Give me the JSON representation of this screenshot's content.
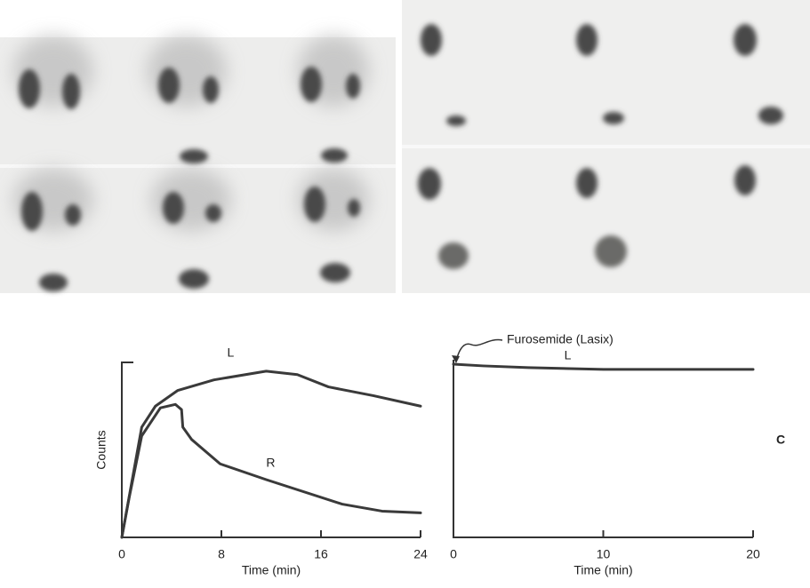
{
  "panel_label": "C",
  "chart_data": [
    {
      "type": "line",
      "ylabel": "Counts",
      "xlabel": "Time (min)",
      "xlim": [
        0,
        24
      ],
      "xticks": [
        0,
        8,
        16,
        24
      ],
      "ylim": [
        0,
        100
      ],
      "series": [
        {
          "name": "L",
          "color": "#3a3a3a",
          "x": [
            0,
            1.6,
            2.7,
            4.5,
            7.4,
            11.6,
            14.1,
            16.6,
            20.2,
            24
          ],
          "values": [
            0,
            63,
            75,
            84,
            90,
            95,
            93,
            86,
            81,
            75
          ]
        },
        {
          "name": "R",
          "color": "#3a3a3a",
          "x": [
            0,
            0.6,
            1.6,
            3.1,
            4.3,
            4.8,
            4.9,
            5.6,
            7.9,
            11.6,
            17.7,
            20.9,
            24
          ],
          "values": [
            0,
            23,
            58,
            74,
            76,
            73,
            63,
            56,
            42,
            33,
            19,
            15,
            14
          ]
        }
      ]
    },
    {
      "type": "line",
      "xlabel": "Time (min)",
      "xlim": [
        0,
        20
      ],
      "xticks": [
        0,
        10,
        20
      ],
      "ylim": [
        0,
        100
      ],
      "annotation": {
        "text": "Furosemide (Lasix)",
        "x": 0
      },
      "series": [
        {
          "name": "L",
          "color": "#3a3a3a",
          "x": [
            0,
            2,
            5,
            10,
            20
          ],
          "values": [
            99,
            98,
            97,
            96,
            96
          ]
        }
      ]
    }
  ]
}
